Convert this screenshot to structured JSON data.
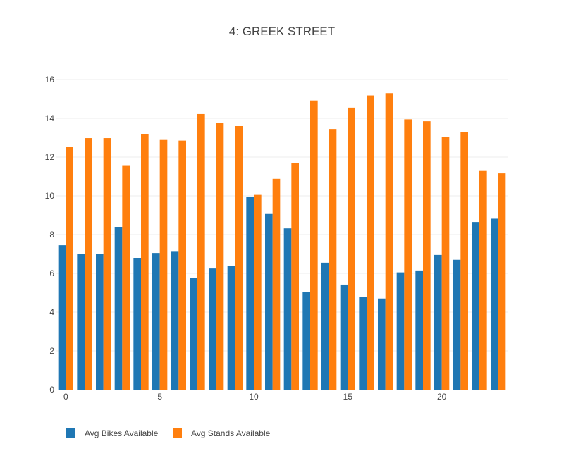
{
  "chart_data": {
    "type": "bar",
    "title": "4: GREEK STREET",
    "xlabel": "",
    "ylabel": "",
    "x": [
      0,
      1,
      2,
      3,
      4,
      5,
      6,
      7,
      8,
      9,
      10,
      11,
      12,
      13,
      14,
      15,
      16,
      17,
      18,
      19,
      20,
      21,
      22,
      23
    ],
    "x_ticks": [
      0,
      5,
      10,
      15,
      20
    ],
    "y_ticks": [
      0,
      2,
      4,
      6,
      8,
      10,
      12,
      14,
      16
    ],
    "ylim": [
      0,
      16.4
    ],
    "xlim": [
      -0.5,
      23.5
    ],
    "grid": true,
    "legend_position": "bottom-left",
    "series": [
      {
        "name": "Avg Bikes Available",
        "color": "#1f77b4",
        "values": [
          7.45,
          7.0,
          7.0,
          8.4,
          6.8,
          7.05,
          7.15,
          5.78,
          6.25,
          6.4,
          9.95,
          9.1,
          8.32,
          5.05,
          6.55,
          5.42,
          4.8,
          4.7,
          6.05,
          6.15,
          6.95,
          6.7,
          8.65,
          8.82
        ]
      },
      {
        "name": "Avg Stands Available",
        "color": "#ff7f0e",
        "values": [
          12.52,
          12.98,
          12.98,
          11.58,
          13.2,
          12.92,
          12.85,
          14.22,
          13.75,
          13.6,
          10.05,
          10.88,
          11.68,
          14.92,
          13.45,
          14.55,
          15.18,
          15.3,
          13.95,
          13.85,
          13.03,
          13.28,
          11.32,
          11.16
        ]
      }
    ]
  }
}
